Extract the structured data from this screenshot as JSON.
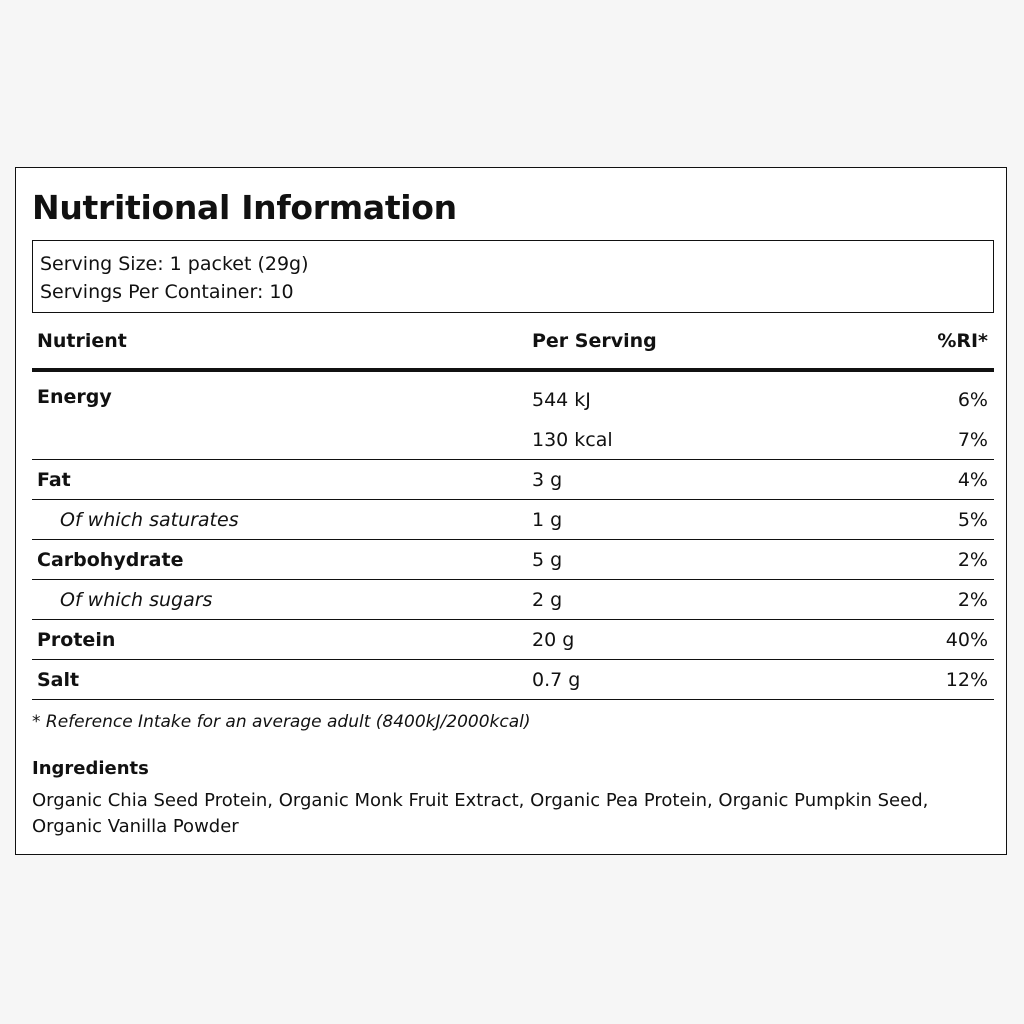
{
  "label": {
    "title": "Nutritional Information",
    "serving_size": "Serving Size: 1 packet (29g)",
    "servings_per_container": "Servings Per Container: 10"
  },
  "table": {
    "headers": {
      "nutrient": "Nutrient",
      "per_serving": "Per Serving",
      "ri": "%RI*"
    },
    "energy": {
      "name": "Energy",
      "kj": "544 kJ",
      "kj_ri": "6%",
      "kcal": "130 kcal",
      "kcal_ri": "7%"
    },
    "rows": [
      {
        "name": "Fat",
        "amount": "3 g",
        "ri": "4%"
      },
      {
        "name": "Of which saturates",
        "amount": "1 g",
        "ri": "5%"
      },
      {
        "name": "Carbohydrate",
        "amount": "5 g",
        "ri": "2%"
      },
      {
        "name": "Of which sugars",
        "amount": "2 g",
        "ri": "2%"
      },
      {
        "name": "Protein",
        "amount": "20 g",
        "ri": "40%"
      },
      {
        "name": "Salt",
        "amount": "0.7 g",
        "ri": "12%"
      }
    ]
  },
  "footnote": "* Reference Intake for an average adult (8400kJ/2000kcal)",
  "ingredients": {
    "heading": "Ingredients",
    "text": "Organic Chia Seed Protein, Organic Monk Fruit Extract, Organic Pea Protein, Organic Pumpkin Seed, Organic Vanilla Powder"
  }
}
